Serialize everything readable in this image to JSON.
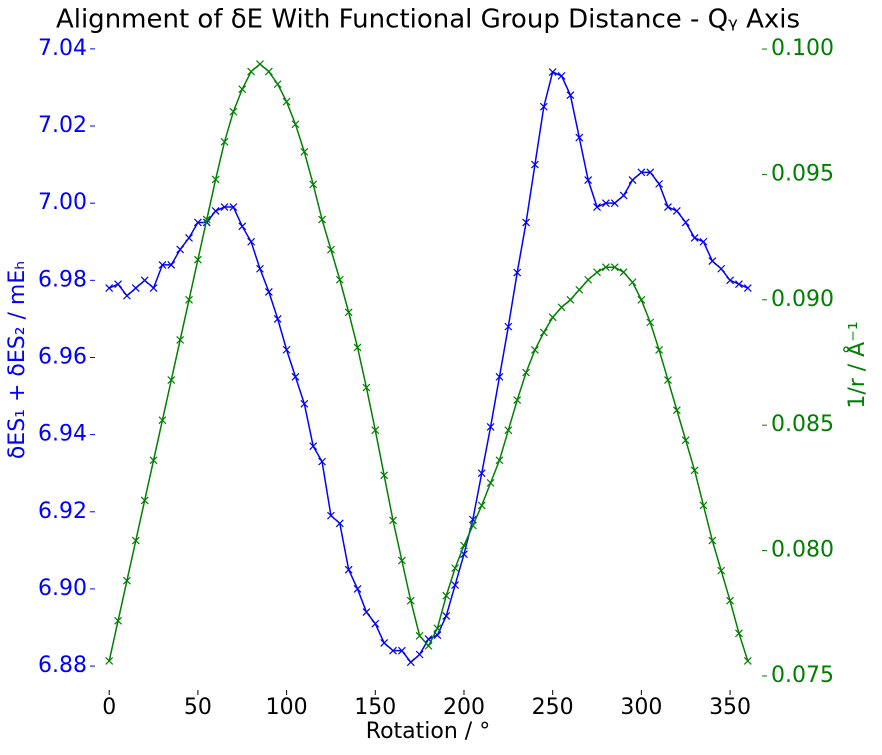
{
  "chart_data": {
    "type": "line",
    "title": "Alignment of δE With Functional Group Distance - Qᵧ Axis",
    "x_label": "Rotation / °",
    "y_label": "δES₁ + δES₂ / mEₕ",
    "y2_label": "1/r / Å⁻¹",
    "x": [
      0,
      5,
      10,
      15,
      20,
      25,
      30,
      35,
      40,
      45,
      50,
      55,
      60,
      65,
      70,
      75,
      80,
      85,
      90,
      95,
      100,
      105,
      110,
      115,
      120,
      125,
      130,
      135,
      140,
      145,
      150,
      155,
      160,
      165,
      170,
      175,
      180,
      185,
      190,
      195,
      200,
      205,
      210,
      215,
      220,
      225,
      230,
      235,
      240,
      245,
      250,
      255,
      260,
      265,
      270,
      275,
      280,
      285,
      290,
      295,
      300,
      305,
      310,
      315,
      320,
      325,
      330,
      335,
      340,
      345,
      350,
      355,
      360
    ],
    "series": [
      {
        "name": "δE",
        "color": "#0000ff",
        "axis": "y",
        "values": [
          6.978,
          6.979,
          6.976,
          6.978,
          6.98,
          6.978,
          6.984,
          6.984,
          6.988,
          6.991,
          6.995,
          6.995,
          6.998,
          6.999,
          6.999,
          6.994,
          6.99,
          6.983,
          6.977,
          6.97,
          6.962,
          6.955,
          6.948,
          6.937,
          6.933,
          6.919,
          6.917,
          6.905,
          6.9,
          6.894,
          6.891,
          6.886,
          6.884,
          6.884,
          6.881,
          6.883,
          6.887,
          6.888,
          6.893,
          6.901,
          6.909,
          6.918,
          6.93,
          6.942,
          6.955,
          6.968,
          6.982,
          6.995,
          7.01,
          7.025,
          7.034,
          7.033,
          7.028,
          7.017,
          7.006,
          6.999,
          7.0,
          7.0,
          7.002,
          7.006,
          7.008,
          7.008,
          7.005,
          6.999,
          6.998,
          6.995,
          6.991,
          6.99,
          6.985,
          6.983,
          6.98,
          6.979,
          6.978
        ]
      },
      {
        "name": "1/r",
        "color": "#008000",
        "axis": "y2",
        "values": [
          0.0756,
          0.0772,
          0.0788,
          0.0804,
          0.082,
          0.0836,
          0.0852,
          0.0868,
          0.0884,
          0.09,
          0.0916,
          0.0932,
          0.0948,
          0.0963,
          0.0975,
          0.0984,
          0.0991,
          0.0994,
          0.0991,
          0.0986,
          0.0979,
          0.097,
          0.0959,
          0.0946,
          0.0932,
          0.092,
          0.0908,
          0.0895,
          0.0881,
          0.0865,
          0.0848,
          0.083,
          0.0812,
          0.0796,
          0.078,
          0.0766,
          0.0762,
          0.0769,
          0.0782,
          0.0793,
          0.0802,
          0.081,
          0.0818,
          0.0827,
          0.0836,
          0.0848,
          0.086,
          0.0871,
          0.088,
          0.0887,
          0.0893,
          0.0897,
          0.09,
          0.0904,
          0.0908,
          0.0911,
          0.0913,
          0.0913,
          0.0911,
          0.0907,
          0.09,
          0.0891,
          0.088,
          0.0868,
          0.0856,
          0.0844,
          0.0832,
          0.0818,
          0.0804,
          0.0792,
          0.078,
          0.0767,
          0.0756
        ]
      }
    ],
    "xlim": [
      -8,
      368
    ],
    "xticks": [
      0,
      50,
      100,
      150,
      200,
      250,
      300,
      350
    ],
    "ylim": [
      6.8738,
      7.0423
    ],
    "yticks": [
      6.88,
      {
        "value": 6.9,
        "label": "6.90"
      },
      6.92,
      6.94,
      6.96,
      6.98,
      {
        "value": 7,
        "label": "7.00"
      },
      7.02,
      7.04
    ],
    "y2lim": [
      0.07444,
      0.10036
    ],
    "y2ticks": [
      0.075,
      {
        "value": 0.08,
        "label": "0.080"
      },
      0.085,
      {
        "value": 0.09,
        "label": "0.090"
      },
      0.095,
      {
        "value": 0.1,
        "label": "0.100"
      }
    ]
  }
}
